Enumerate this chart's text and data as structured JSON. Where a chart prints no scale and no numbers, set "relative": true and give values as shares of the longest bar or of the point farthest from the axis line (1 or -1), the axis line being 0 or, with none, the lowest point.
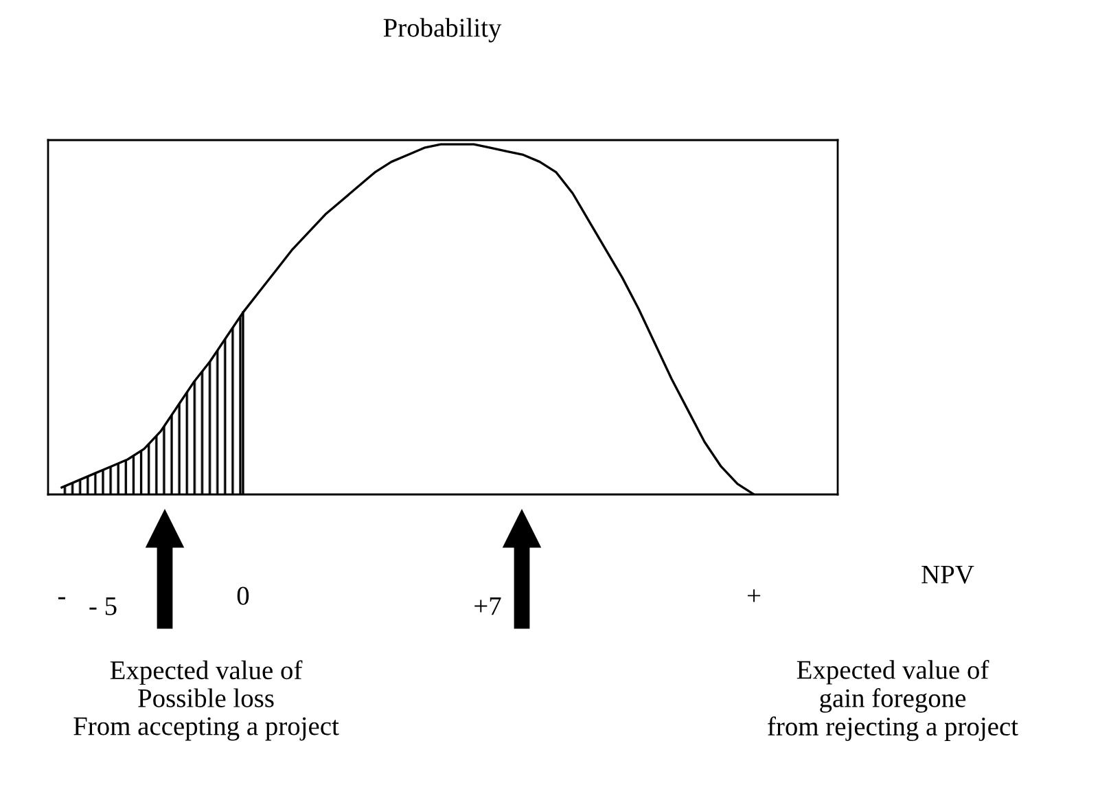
{
  "chart_data": {
    "type": "line",
    "relative": true,
    "ylabel": "Probability",
    "categories": [
      "-",
      null,
      null,
      null,
      null,
      null,
      null,
      null,
      null,
      null,
      null,
      "0",
      null,
      null,
      null,
      null,
      null,
      null,
      null,
      null,
      null,
      null,
      null,
      null,
      null,
      null,
      null,
      null,
      null,
      null,
      null,
      null,
      null,
      null,
      null,
      null,
      null,
      null,
      null,
      null,
      null,
      null,
      "+"
    ],
    "series": [
      {
        "color": "#000000",
        "values": [
          0.02,
          0.04,
          0.06,
          0.08,
          0.1,
          0.13,
          0.18,
          0.25,
          0.32,
          0.38,
          0.45,
          0.52,
          0.58,
          0.64,
          0.7,
          0.75,
          0.8,
          0.84,
          0.88,
          0.92,
          0.95,
          0.97,
          0.99,
          1.0,
          1.0,
          1.0,
          0.99,
          0.98,
          0.97,
          0.95,
          0.92,
          0.86,
          0.78,
          0.7,
          0.62,
          0.53,
          0.43,
          0.33,
          0.24,
          0.15,
          0.08,
          0.03,
          0.0
        ]
      },
      {
        "type": "area",
        "color": "#000000",
        "values": [
          0.02,
          0.04,
          0.06,
          0.08,
          0.1,
          0.13,
          0.18,
          0.25,
          0.32,
          0.38,
          0.45,
          0.52,
          null,
          null,
          null,
          null,
          null,
          null,
          null,
          null,
          null,
          null,
          null,
          null,
          null,
          null,
          null,
          null,
          null,
          null,
          null,
          null,
          null,
          null,
          null,
          null,
          null,
          null,
          null,
          null,
          null,
          null,
          null
        ]
      }
    ],
    "annotations": [
      "NPV",
      "- 5",
      "+7",
      "Expected value of\nPossible loss\nFrom accepting a project",
      "Expected value of\ngain foregone\nfrom rejecting a project"
    ],
    "grid": false,
    "legend": false
  }
}
